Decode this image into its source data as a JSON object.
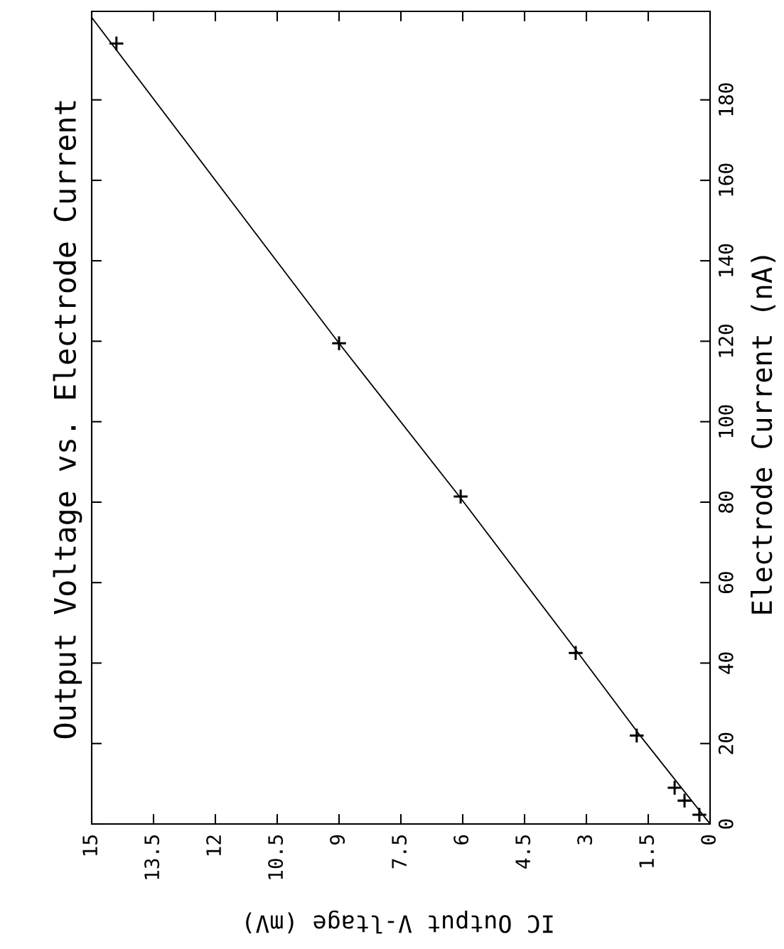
{
  "chart_data": {
    "type": "scatter",
    "title": "Output Voltage vs. Electrode Current",
    "xlabel": "IC Output V-ltage (mV)",
    "ylabel": "Electrode Current (nA)",
    "xlim": [
      15,
      0
    ],
    "xticks": [
      0,
      1.5,
      3,
      4.5,
      6,
      7.5,
      9,
      10.5,
      12,
      13.5,
      15
    ],
    "ylim": [
      0,
      202
    ],
    "yticks": [
      0,
      20,
      40,
      60,
      80,
      100,
      120,
      140,
      160,
      180
    ],
    "grid": false,
    "series": [
      {
        "marker": "cross",
        "color": "#000000",
        "x": [
          0.26,
          0.62,
          0.86,
          1.78,
          3.26,
          6.05,
          9.0,
          14.4
        ],
        "values": [
          2.3,
          5.8,
          9.0,
          22,
          42.5,
          81.4,
          119.5,
          194
        ]
      },
      {
        "type": "line",
        "marker": "none",
        "color": "#000000",
        "x": [
          0,
          1.7,
          3.2,
          6.05,
          9.0,
          15
        ],
        "values": [
          0,
          22,
          42.5,
          81,
          119.5,
          200.5
        ]
      }
    ]
  }
}
